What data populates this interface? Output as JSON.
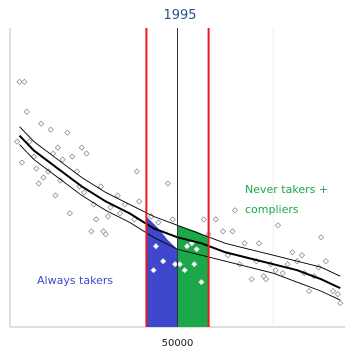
{
  "chart_data": {
    "type": "scatter",
    "title": "1995",
    "xlabel": "",
    "ylabel": "",
    "xlim": [
      15000,
      85000
    ],
    "ylim": [
      0,
      100
    ],
    "x_ticks": [
      {
        "value": 50000,
        "label": "50000"
      }
    ],
    "cutoff": 50000,
    "window": [
      43500,
      56500
    ],
    "grid": false,
    "colors": {
      "window_line": "#e8191f",
      "always_takers_fill": "#3f48cc",
      "never_takers_fill": "#1aa84a",
      "points": "#888888",
      "fit": "#000000",
      "title": "#2a4f8a"
    },
    "annotations": {
      "always_takers": "Always takers",
      "never_takers": "Never takers +\ncompliers",
      "always_takers_color": "#3f48cc",
      "never_takers_color": "#1aa84a"
    },
    "points": [
      [
        17000,
        82
      ],
      [
        18000,
        82
      ],
      [
        16500,
        62
      ],
      [
        18500,
        72
      ],
      [
        17500,
        55
      ],
      [
        19000,
        62
      ],
      [
        20000,
        57
      ],
      [
        21000,
        48
      ],
      [
        20500,
        53
      ],
      [
        22000,
        50
      ],
      [
        21500,
        68
      ],
      [
        23500,
        66
      ],
      [
        24000,
        58
      ],
      [
        25000,
        60
      ],
      [
        24500,
        44
      ],
      [
        23000,
        52
      ],
      [
        25500,
        49
      ],
      [
        26000,
        56
      ],
      [
        27000,
        65
      ],
      [
        28000,
        57
      ],
      [
        27500,
        38
      ],
      [
        29000,
        52
      ],
      [
        30000,
        60
      ],
      [
        29500,
        47
      ],
      [
        31000,
        58
      ],
      [
        30500,
        45
      ],
      [
        32500,
        41
      ],
      [
        32000,
        32
      ],
      [
        33000,
        36
      ],
      [
        34000,
        47
      ],
      [
        35500,
        37
      ],
      [
        34500,
        32
      ],
      [
        35000,
        31
      ],
      [
        37500,
        44
      ],
      [
        38000,
        38
      ],
      [
        39000,
        41
      ],
      [
        36000,
        40
      ],
      [
        41500,
        52
      ],
      [
        42000,
        42
      ],
      [
        41000,
        36
      ],
      [
        44500,
        37
      ],
      [
        45500,
        27
      ],
      [
        46000,
        35
      ],
      [
        45000,
        19
      ],
      [
        47500,
        32
      ],
      [
        48000,
        48
      ],
      [
        47000,
        22
      ],
      [
        49000,
        36
      ],
      [
        49500,
        21
      ],
      [
        50500,
        21
      ],
      [
        51500,
        19
      ],
      [
        52000,
        27
      ],
      [
        53000,
        28
      ],
      [
        54000,
        26
      ],
      [
        55500,
        36
      ],
      [
        56500,
        31
      ],
      [
        55000,
        15
      ],
      [
        53500,
        21
      ],
      [
        58000,
        36
      ],
      [
        59500,
        32
      ],
      [
        60500,
        24
      ],
      [
        61500,
        32
      ],
      [
        62000,
        39
      ],
      [
        63000,
        21
      ],
      [
        64000,
        28
      ],
      [
        65500,
        16
      ],
      [
        66500,
        22
      ],
      [
        67000,
        28
      ],
      [
        68000,
        17
      ],
      [
        68500,
        16
      ],
      [
        69500,
        21
      ],
      [
        71000,
        34
      ],
      [
        70500,
        19
      ],
      [
        72000,
        18
      ],
      [
        73000,
        21
      ],
      [
        74000,
        25
      ],
      [
        75000,
        22
      ],
      [
        76000,
        24
      ],
      [
        76500,
        18
      ],
      [
        77500,
        12
      ],
      [
        78500,
        17
      ],
      [
        79500,
        20
      ],
      [
        80000,
        30
      ],
      [
        81000,
        22
      ],
      [
        82500,
        12
      ],
      [
        83500,
        11
      ],
      [
        84000,
        8
      ]
    ],
    "fit_series": [
      {
        "name": "",
        "points": [
          [
            17000,
            64
          ],
          [
            20000,
            59
          ],
          [
            25000,
            53
          ],
          [
            30000,
            47
          ],
          [
            35000,
            42
          ],
          [
            40000,
            38
          ],
          [
            45000,
            33
          ],
          [
            50000,
            30
          ],
          [
            55000,
            28
          ],
          [
            60000,
            25
          ],
          [
            65000,
            23
          ],
          [
            70000,
            21
          ],
          [
            75000,
            19
          ],
          [
            80000,
            16
          ],
          [
            84000,
            13
          ]
        ]
      },
      {
        "name": "",
        "points": [
          [
            17000,
            67
          ],
          [
            20000,
            62
          ],
          [
            25000,
            56
          ],
          [
            30000,
            50
          ],
          [
            35000,
            45
          ],
          [
            40000,
            41
          ],
          [
            45000,
            37
          ],
          [
            50000,
            34
          ],
          [
            55000,
            31
          ],
          [
            60000,
            28
          ],
          [
            65000,
            26
          ],
          [
            70000,
            24
          ],
          [
            75000,
            22
          ],
          [
            80000,
            20
          ],
          [
            84000,
            17
          ]
        ]
      },
      {
        "name": "",
        "points": [
          [
            17000,
            61
          ],
          [
            20000,
            56
          ],
          [
            25000,
            50
          ],
          [
            30000,
            44
          ],
          [
            35000,
            39
          ],
          [
            40000,
            35
          ],
          [
            45000,
            30
          ],
          [
            50000,
            26
          ],
          [
            55000,
            24
          ],
          [
            60000,
            22
          ],
          [
            65000,
            20
          ],
          [
            70000,
            18
          ],
          [
            75000,
            15
          ],
          [
            80000,
            12
          ],
          [
            84000,
            9
          ]
        ]
      }
    ],
    "always_takers_area": {
      "x_start": 43500,
      "x_end": 50000,
      "top": [
        [
          43500,
          37
        ],
        [
          46000,
          33
        ],
        [
          48000,
          29
        ],
        [
          50000,
          26
        ]
      ]
    },
    "never_takers_area": {
      "x_start": 50000,
      "x_end": 56500,
      "top": [
        [
          50000,
          34
        ],
        [
          52000,
          33
        ],
        [
          54000,
          32
        ],
        [
          56500,
          30
        ]
      ]
    }
  }
}
